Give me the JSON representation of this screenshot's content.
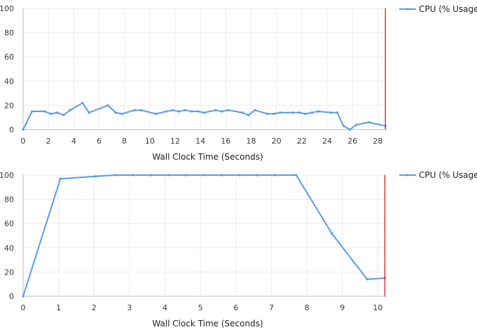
{
  "colors": {
    "series": "#5b9be6",
    "cursor": "#cc1111"
  },
  "chart_data": [
    {
      "type": "line",
      "xlabel": "Wall Clock Time (Seconds)",
      "ylabel": "",
      "xlim": [
        0,
        28.7
      ],
      "ylim": [
        0,
        100
      ],
      "x_ticks": [
        0,
        2,
        4,
        6,
        8,
        10,
        12,
        14,
        16,
        18,
        20,
        22,
        24,
        26,
        28
      ],
      "y_ticks": [
        0,
        20,
        40,
        60,
        80,
        100
      ],
      "grid": true,
      "legend_position": "top-right",
      "cursor_x": 28.6,
      "series": [
        {
          "name": "CPU (% Usage)",
          "x": [
            0,
            0.7,
            1.7,
            2.2,
            2.7,
            3.2,
            3.7,
            4.7,
            5.2,
            6.7,
            7.3,
            7.8,
            8.8,
            9.3,
            10.5,
            11.3,
            11.8,
            12.3,
            12.8,
            13.3,
            13.8,
            14.3,
            15.2,
            15.7,
            16.2,
            17.3,
            17.8,
            18.3,
            19.3,
            19.8,
            20.3,
            21.3,
            21.8,
            22.3,
            22.8,
            23.3,
            24.3,
            24.8,
            25.3,
            25.8,
            26.3,
            27.3,
            28.6
          ],
          "y": [
            0,
            15,
            15,
            13,
            14,
            12,
            16,
            22,
            14,
            20,
            14,
            13,
            16,
            16,
            13,
            15,
            16,
            15,
            16,
            15,
            15,
            14,
            16,
            15,
            16,
            14,
            12,
            16,
            13,
            13,
            14,
            14,
            14,
            13,
            14,
            15,
            14,
            14,
            3,
            0,
            4,
            6,
            3
          ]
        }
      ]
    },
    {
      "type": "line",
      "xlabel": "Wall Clock Time (Seconds)",
      "ylabel": "",
      "xlim": [
        0,
        10.25
      ],
      "ylim": [
        0,
        100
      ],
      "x_ticks": [
        0,
        1,
        2,
        3,
        4,
        5,
        6,
        7,
        8,
        9,
        10
      ],
      "y_ticks": [
        0,
        20,
        40,
        60,
        80,
        100
      ],
      "grid": true,
      "legend_position": "top-right",
      "cursor_x": 10.2,
      "series": [
        {
          "name": "CPU (% Usage)",
          "x": [
            0,
            1.05,
            2.05,
            2.6,
            3.1,
            3.6,
            4.1,
            4.6,
            5.1,
            5.6,
            6.1,
            6.6,
            7.1,
            7.7,
            8.7,
            9.7,
            10.2
          ],
          "y": [
            0,
            97,
            99,
            100,
            100,
            100,
            100,
            100,
            100,
            100,
            100,
            100,
            100,
            100,
            52,
            14,
            15
          ]
        }
      ]
    }
  ]
}
